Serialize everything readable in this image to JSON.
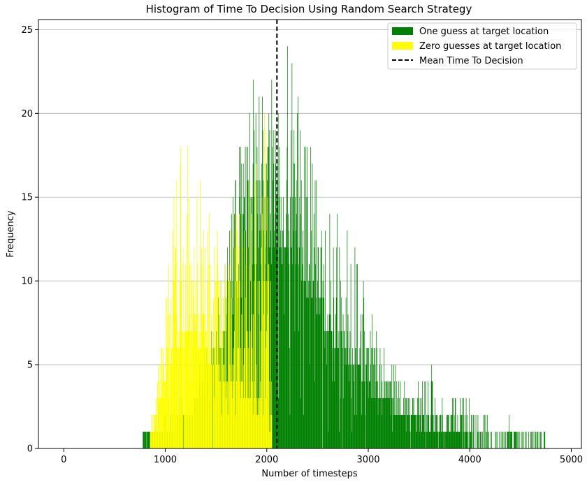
{
  "chart_data": {
    "type": "bar",
    "title": "Histogram of Time To Decision Using Random Search Strategy",
    "xlabel": "Number of timesteps",
    "ylabel": "Frequency",
    "xlim": [
      -250,
      5100
    ],
    "ylim": [
      0,
      25.6
    ],
    "xticks": [
      0,
      1000,
      2000,
      3000,
      4000,
      5000
    ],
    "yticks": [
      0,
      5,
      10,
      15,
      20,
      25
    ],
    "grid": "horizontal",
    "legend_position": "top-right",
    "mean_time_to_decision": 2100,
    "series": [
      {
        "name": "One guess at target location",
        "color": "#008000",
        "style": "histogram",
        "bin_centers": [
          800,
          900,
          1000,
          1100,
          1200,
          1300,
          1400,
          1500,
          1600,
          1700,
          1800,
          1900,
          2000,
          2100,
          2200,
          2300,
          2400,
          2500,
          2600,
          2700,
          2800,
          2900,
          3000,
          3100,
          3200,
          3300,
          3400,
          3500,
          3600,
          3700,
          3800,
          3900,
          4000,
          4100,
          4200,
          4300,
          4400,
          4500,
          4600,
          4700
        ],
        "values": [
          0.5,
          0.6,
          0.8,
          1.1,
          1.6,
          2.6,
          3.6,
          5.3,
          6.8,
          8.4,
          9.6,
          10.6,
          11.4,
          11.6,
          11.1,
          10.5,
          9.4,
          8.1,
          6.9,
          5.9,
          4.9,
          4.1,
          3.4,
          2.9,
          2.5,
          2.1,
          1.7,
          1.4,
          1.1,
          0.9,
          0.7,
          0.5,
          0.4,
          0.3,
          0.25,
          0.2,
          0.15,
          0.1,
          0.08,
          0.06
        ],
        "peak_values": [
          1,
          1,
          2,
          3,
          3,
          4,
          7,
          10,
          12,
          17,
          21,
          23,
          22,
          22,
          25,
          21,
          20,
          17,
          16,
          14,
          13,
          12,
          8,
          7,
          6,
          5,
          4,
          4,
          5,
          3,
          3,
          3,
          3,
          2,
          2,
          1,
          2,
          1,
          1,
          2
        ]
      },
      {
        "name": "Zero guesses at target location",
        "color": "#ffff00",
        "style": "histogram",
        "bin_centers": [
          900,
          1000,
          1100,
          1200,
          1300,
          1400,
          1500,
          1600,
          1700,
          1800,
          1900,
          2000
        ],
        "values": [
          1.5,
          3.5,
          6.0,
          7.0,
          6.5,
          5.5,
          4.5,
          4.0,
          3.5,
          3.0,
          2.0,
          1.0
        ],
        "peak_values": [
          4,
          9,
          19,
          19,
          18,
          16,
          13,
          13,
          16,
          18,
          17,
          21
        ]
      },
      {
        "name": "Mean Time To Decision",
        "color": "#000000",
        "style": "dashed-vertical-line",
        "x": 2100
      }
    ]
  }
}
